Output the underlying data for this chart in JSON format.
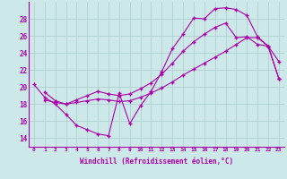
{
  "bg_color": "#cde8e8",
  "line_color": "#aa00aa",
  "grid_color": "#aacccc",
  "xlabel": "Windchill (Refroidissement éolien,°C)",
  "xlim": [
    -0.5,
    23.5
  ],
  "ylim": [
    13.0,
    30.0
  ],
  "yticks": [
    14,
    16,
    18,
    20,
    22,
    24,
    26,
    28
  ],
  "xticks": [
    0,
    1,
    2,
    3,
    4,
    5,
    6,
    7,
    8,
    9,
    10,
    11,
    12,
    13,
    14,
    15,
    16,
    17,
    18,
    19,
    20,
    21,
    22,
    23
  ],
  "curve1_x": [
    0,
    1,
    2,
    3,
    4,
    5,
    6,
    7,
    8,
    9,
    10,
    11,
    12,
    13,
    14,
    15,
    16,
    17,
    18,
    19,
    20,
    21,
    22,
    23
  ],
  "curve1_y": [
    20.3,
    18.8,
    18.0,
    16.8,
    15.5,
    15.0,
    14.5,
    14.3,
    19.3,
    15.7,
    17.8,
    19.5,
    21.8,
    24.5,
    26.2,
    28.1,
    28.0,
    29.2,
    29.3,
    29.1,
    28.4,
    25.9,
    24.8,
    23.0
  ],
  "curve2_x": [
    1,
    2,
    3,
    4,
    5,
    6,
    7,
    8,
    9,
    10,
    11,
    12,
    13,
    14,
    15,
    16,
    17,
    18,
    19,
    20,
    21,
    22,
    23
  ],
  "curve2_y": [
    19.4,
    18.4,
    18.0,
    18.5,
    19.0,
    19.5,
    19.2,
    19.0,
    19.2,
    19.8,
    20.5,
    21.5,
    22.8,
    24.2,
    25.3,
    26.2,
    27.0,
    27.5,
    25.8,
    25.9,
    25.0,
    24.8,
    21.0
  ],
  "curve3_x": [
    1,
    2,
    3,
    4,
    5,
    6,
    7,
    8,
    9,
    10,
    11,
    12,
    13,
    14,
    15,
    16,
    17,
    18,
    19,
    20,
    21,
    22,
    23
  ],
  "curve3_y": [
    18.5,
    18.2,
    18.0,
    18.2,
    18.4,
    18.6,
    18.5,
    18.3,
    18.4,
    18.8,
    19.3,
    19.9,
    20.6,
    21.4,
    22.1,
    22.8,
    23.5,
    24.2,
    25.0,
    25.8,
    25.8,
    24.8,
    21.0
  ]
}
